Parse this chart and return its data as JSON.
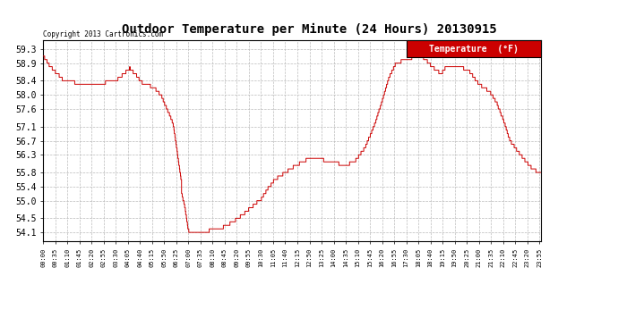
{
  "title": "Outdoor Temperature per Minute (24 Hours) 20130915",
  "copyright_text": "Copyright 2013 Cartronics.com",
  "legend_label": "Temperature  (°F)",
  "legend_bg": "#cc0000",
  "line_color": "#cc0000",
  "background_color": "#ffffff",
  "grid_color": "#bbbbbb",
  "y_ticks": [
    54.1,
    54.5,
    55.0,
    55.4,
    55.8,
    56.3,
    56.7,
    57.1,
    57.6,
    58.0,
    58.4,
    58.9,
    59.3
  ],
  "ylim": [
    53.85,
    59.55
  ],
  "x_tick_labels": [
    "00:00",
    "00:35",
    "01:10",
    "01:45",
    "02:20",
    "02:55",
    "03:30",
    "04:05",
    "04:40",
    "05:15",
    "05:50",
    "06:25",
    "07:00",
    "07:35",
    "08:10",
    "08:45",
    "09:20",
    "09:55",
    "10:30",
    "11:05",
    "11:40",
    "12:15",
    "12:50",
    "13:25",
    "14:00",
    "14:35",
    "15:10",
    "15:45",
    "16:20",
    "16:55",
    "17:30",
    "18:05",
    "18:40",
    "19:15",
    "19:50",
    "20:25",
    "21:00",
    "21:35",
    "22:10",
    "22:45",
    "23:20",
    "23:55"
  ],
  "n_minutes": 1440,
  "key_times": [
    0,
    20,
    60,
    90,
    120,
    150,
    180,
    210,
    250,
    265,
    285,
    310,
    320,
    340,
    375,
    400,
    390,
    395,
    400,
    410,
    415,
    420,
    430,
    450,
    480,
    510,
    540,
    570,
    600,
    630,
    650,
    670,
    700,
    730,
    760,
    790,
    810,
    840,
    870,
    900,
    930,
    960,
    985,
    1000,
    1020,
    1050,
    1080,
    1100,
    1110,
    1130,
    1150,
    1170,
    1200,
    1230,
    1260,
    1290,
    1310,
    1330,
    1350,
    1380,
    1410,
    1439
  ],
  "key_temps": [
    59.1,
    58.8,
    58.4,
    58.35,
    58.3,
    58.3,
    58.35,
    58.4,
    58.75,
    58.6,
    58.35,
    58.25,
    58.2,
    58.0,
    57.2,
    55.5,
    55.8,
    55.5,
    55.2,
    54.8,
    54.4,
    54.15,
    54.1,
    54.1,
    54.15,
    54.2,
    54.35,
    54.55,
    54.8,
    55.05,
    55.35,
    55.6,
    55.8,
    56.0,
    56.15,
    56.25,
    56.15,
    56.1,
    56.0,
    56.1,
    56.5,
    57.2,
    58.0,
    58.5,
    58.9,
    59.0,
    59.1,
    59.05,
    58.95,
    58.75,
    58.6,
    58.85,
    58.8,
    58.7,
    58.3,
    58.1,
    57.8,
    57.3,
    56.7,
    56.3,
    55.95,
    55.75
  ]
}
